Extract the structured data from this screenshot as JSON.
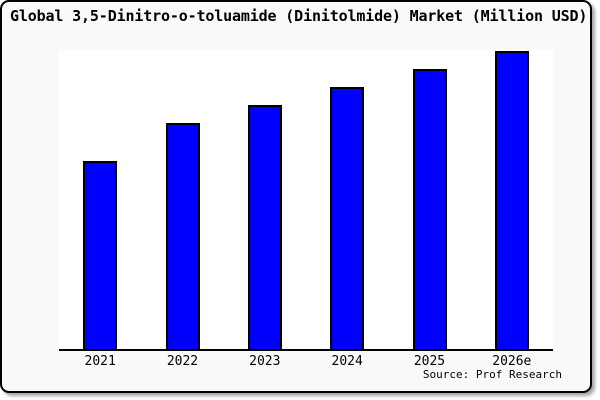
{
  "title": "Global 3,5-Dinitro-o-toluamide (Dinitolmide) Market (Million USD)",
  "source": "Source: Prof Research",
  "colors": {
    "bar_fill": "#0000ff",
    "bar_border": "#000000",
    "canvas_background": "#f9f9f9",
    "plot_background": "#ffffff",
    "frame_border": "#000000",
    "text": "#000000"
  },
  "chart_data": {
    "type": "bar",
    "title": "Global 3,5-Dinitro-o-toluamide (Dinitolmide) Market (Million USD)",
    "categories": [
      "2021",
      "2022",
      "2023",
      "2024",
      "2025",
      "2026e"
    ],
    "values": [
      63,
      76,
      82,
      88,
      94,
      100
    ],
    "units": "relative height, % of 2026e bar (y-axis has no tick labels)",
    "xlabel": "",
    "ylabel": "",
    "ylim": [
      0,
      100
    ],
    "grid": false,
    "legend": false,
    "annotation": "Source: Prof Research"
  }
}
